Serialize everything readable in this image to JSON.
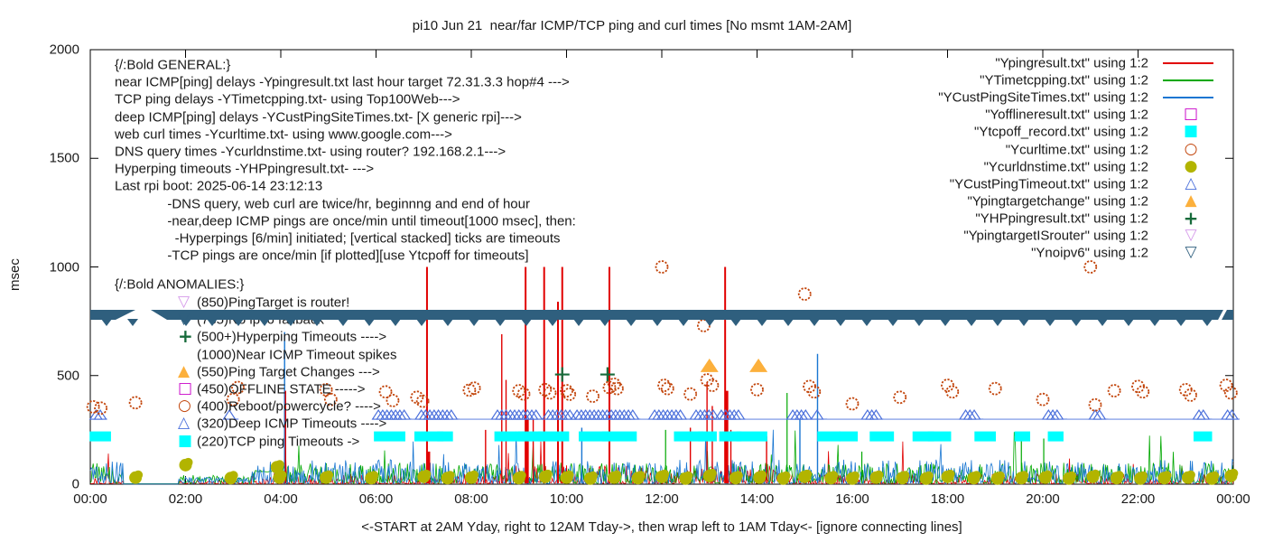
{
  "title": "pi10 Jun 21  near/far ICMP/TCP ping and curl times [No msmt 1AM-2AM]",
  "y_axis": {
    "label": "msec",
    "tick_values": [
      0,
      500,
      1000,
      1500,
      2000
    ],
    "tick_labels": [
      "0",
      "500",
      "1000",
      "1500",
      "2000"
    ]
  },
  "x_axis": {
    "label": "<-START at 2AM Yday, right to 12AM Tday->, then wrap left to 1AM Tday<- [ignore connecting lines]",
    "tick_hours": [
      0,
      2,
      4,
      6,
      8,
      10,
      12,
      14,
      16,
      18,
      20,
      22,
      24
    ],
    "tick_labels": [
      "00:00",
      "02:00",
      "04:00",
      "06:00",
      "08:00",
      "10:00",
      "12:00",
      "14:00",
      "16:00",
      "18:00",
      "20:00",
      "22:00",
      "00:00"
    ]
  },
  "legend": {
    "items": [
      {
        "label": "\"Ypingresult.txt\" using 1:2",
        "marker": "line",
        "color": "#e10000"
      },
      {
        "label": "\"YTimetcpping.txt\" using 1:2",
        "marker": "line",
        "color": "#00a800"
      },
      {
        "label": "\"YCustPingSiteTimes.txt\" using 1:2",
        "marker": "line",
        "color": "#1976d2"
      },
      {
        "label": "\"Yofflineresult.txt\" using 1:2",
        "marker": "square-open",
        "color": "#c800c8"
      },
      {
        "label": "\"Ytcpoff_record.txt\" using 1:2",
        "marker": "square-filled",
        "color": "#00ffff"
      },
      {
        "label": "\"Ycurltime.txt\" using 1:2",
        "marker": "circle-open",
        "color": "#c2440a"
      },
      {
        "label": "\"Ycurldnstime.txt\" using 1:2",
        "marker": "circle-filled",
        "color": "#b2b400"
      },
      {
        "label": "\"YCustPingTimeout.txt\" using 1:2",
        "marker": "tri-up-open",
        "color": "#4a6fdb"
      },
      {
        "label": "\"Ypingtargetchange\" using 1:2",
        "marker": "tri-up-filled",
        "color": "#fcb03c"
      },
      {
        "label": "\"YHPpingresult.txt\" using 1:2",
        "marker": "plus",
        "color": "#176b3b"
      },
      {
        "label": "\"YpingtargetISrouter\" using 1:2",
        "marker": "tri-down-open",
        "color": "#d59aea"
      },
      {
        "label": "\"Ynoipv6\" using 1:2",
        "marker": "tri-down-open",
        "color": "#2f5f7e"
      }
    ]
  },
  "annotations": {
    "general": {
      "lines": [
        "{/:Bold GENERAL:}",
        "near ICMP[ping] delays -Ypingresult.txt last hour target 72.31.3.3 hop#4 --->",
        "TCP ping delays -YTimetcpping.txt- using Top100Web--->",
        "deep ICMP[ping] delays -YCustPingSiteTimes.txt- [X generic rpi]--->",
        "web curl times -Ycurltime.txt- using www.google.com--->",
        "DNS query times -Ycurldnstime.txt- using router? 192.168.2.1--->",
        "Hyperping timeouts -YHPpingresult.txt- --->",
        "Last rpi boot: 2025-06-14 23:12:13",
        "              -DNS query, web curl are twice/hr, beginnng and end of hour",
        "              -near,deep ICMP pings are once/min until timeout[1000 msec], then:",
        "                -Hyperpings [6/min] initiated; [vertical stacked] ticks are timeouts",
        "              -TCP pings are once/min [if plotted][use Ytcpoff for timeouts]"
      ]
    },
    "anomalies": {
      "header": "{/:Bold ANOMALIES:}",
      "items": [
        {
          "marker": "tri-down-open",
          "color": "#d59aea",
          "text": "(850)PingTarget is router!"
        },
        {
          "marker": "tri-down-open",
          "color": "#2f5f7e",
          "text": "(785)No ipv6 fallback",
          "occluded": true
        },
        {
          "marker": "plus",
          "color": "#176b3b",
          "text": "(500+)Hyperping Timeouts ---->"
        },
        {
          "marker": "none",
          "color": "#1a1a1a",
          "text": "(1000)Near ICMP Timeout spikes"
        },
        {
          "marker": "tri-up-filled",
          "color": "#fcb03c",
          "text": "(550)Ping Target Changes --->"
        },
        {
          "marker": "square-open",
          "color": "#c800c8",
          "text": "(450)OFFLINE STATE ----->"
        },
        {
          "marker": "circle-open",
          "color": "#c2440a",
          "text": "(400)Reboot/powercycle? ---->"
        },
        {
          "marker": "tri-up-open",
          "color": "#4a6fdb",
          "text": "(320)Deep ICMP Timeouts ---->"
        },
        {
          "marker": "square-filled",
          "color": "#00ffff",
          "text": "(220)TCP ping Timeouts ->"
        }
      ]
    }
  },
  "chart_data": {
    "type": "mixed",
    "title": "pi10 Jun 21  near/far ICMP/TCP ping and curl times [No msmt 1AM-2AM]",
    "xlabel": "<-START at 2AM Yday, right to 12AM Tday->, then wrap left to 1AM Tday<- [ignore connecting lines]",
    "ylabel": "msec",
    "ylim": [
      0,
      2000
    ],
    "x_hours_range": [
      0,
      24
    ],
    "grid": false,
    "legend_position": "top-right",
    "noipv6_band": {
      "description": "dense stacked triangle-down markers forming a solid horizontal band",
      "color": "#2f5f7e",
      "top_msec": 803,
      "bottom_msec": 755,
      "notch_hours": [
        0.95,
        1.62
      ],
      "tip_spacing_hours": 0.55
    },
    "near_icmp_timeout_spikes_red": [
      [
        7.07,
        1000
      ],
      [
        9.14,
        1000
      ],
      [
        9.53,
        1000
      ],
      [
        9.82,
        840
      ],
      [
        9.91,
        1000
      ],
      [
        10.9,
        1000
      ],
      [
        13.33,
        1000
      ]
    ],
    "red_thick_bases": [
      [
        7.07,
        150
      ],
      [
        9.14,
        300
      ],
      [
        13.33,
        430
      ]
    ],
    "red_medium_spikes": [
      [
        4.1,
        430
      ],
      [
        8.3,
        250
      ],
      [
        8.64,
        690
      ],
      [
        8.73,
        480
      ],
      [
        9.3,
        300
      ],
      [
        12.6,
        260
      ],
      [
        12.95,
        465
      ],
      [
        13.45,
        250
      ],
      [
        13.06,
        360
      ],
      [
        14.2,
        220
      ]
    ],
    "blue_spikes": [
      [
        4.08,
        700
      ],
      [
        10.32,
        260
      ],
      [
        14.9,
        300
      ],
      [
        15.27,
        600
      ]
    ],
    "green_spikes": [
      [
        12.08,
        250
      ],
      [
        14.63,
        420
      ],
      [
        16.2,
        150
      ],
      [
        19.55,
        200
      ],
      [
        20.02,
        210
      ]
    ],
    "hyperping_timeout_plus": [
      [
        9.91,
        505
      ],
      [
        10.86,
        505
      ]
    ],
    "ping_target_change_triangles": [
      [
        13.0,
        545
      ],
      [
        14.03,
        545
      ]
    ],
    "curl_time_circles": [
      [
        0.06,
        356
      ],
      [
        0.22,
        350
      ],
      [
        0.95,
        375
      ],
      [
        3.0,
        390
      ],
      [
        3.1,
        445
      ],
      [
        4.95,
        435
      ],
      [
        5.05,
        390
      ],
      [
        6.2,
        425
      ],
      [
        6.35,
        385
      ],
      [
        6.86,
        400
      ],
      [
        6.98,
        382
      ],
      [
        7.96,
        433
      ],
      [
        8.06,
        442
      ],
      [
        9.0,
        430
      ],
      [
        9.1,
        415
      ],
      [
        9.55,
        435
      ],
      [
        9.65,
        420
      ],
      [
        10.0,
        430
      ],
      [
        10.06,
        414
      ],
      [
        10.55,
        405
      ],
      [
        10.9,
        445
      ],
      [
        11.0,
        460
      ],
      [
        11.06,
        440
      ],
      [
        12.0,
        1000
      ],
      [
        12.05,
        455
      ],
      [
        12.12,
        440
      ],
      [
        12.6,
        415
      ],
      [
        12.88,
        730
      ],
      [
        12.95,
        480
      ],
      [
        13.06,
        455
      ],
      [
        14.0,
        435
      ],
      [
        15.0,
        875
      ],
      [
        15.1,
        450
      ],
      [
        15.2,
        425
      ],
      [
        16.0,
        370
      ],
      [
        17.0,
        400
      ],
      [
        18.0,
        455
      ],
      [
        18.1,
        425
      ],
      [
        19.0,
        440
      ],
      [
        20.0,
        390
      ],
      [
        21.0,
        1000
      ],
      [
        21.1,
        365
      ],
      [
        21.5,
        430
      ],
      [
        22.0,
        450
      ],
      [
        22.1,
        425
      ],
      [
        23.0,
        435
      ],
      [
        23.1,
        410
      ],
      [
        23.85,
        455
      ],
      [
        23.95,
        420
      ]
    ],
    "dns_time_circles": [
      [
        0.95,
        30
      ],
      [
        2.0,
        88
      ],
      [
        2.95,
        28
      ],
      [
        3.92,
        78
      ],
      [
        3.97,
        30
      ],
      [
        4.95,
        30
      ],
      [
        5.9,
        28
      ],
      [
        7.0,
        34
      ],
      [
        7.5,
        28
      ],
      [
        8.0,
        30
      ],
      [
        9.0,
        28
      ],
      [
        9.55,
        34
      ],
      [
        10.0,
        30
      ],
      [
        10.5,
        26
      ],
      [
        11.0,
        30
      ],
      [
        11.5,
        28
      ],
      [
        12.0,
        34
      ],
      [
        12.5,
        26
      ],
      [
        13.0,
        38
      ],
      [
        13.55,
        28
      ],
      [
        14.05,
        30
      ],
      [
        14.55,
        26
      ],
      [
        15.0,
        34
      ],
      [
        15.55,
        28
      ],
      [
        16.0,
        26
      ],
      [
        16.5,
        30
      ],
      [
        17.05,
        28
      ],
      [
        17.55,
        26
      ],
      [
        18.0,
        34
      ],
      [
        18.55,
        28
      ],
      [
        19.05,
        26
      ],
      [
        19.55,
        28
      ],
      [
        20.05,
        30
      ],
      [
        20.55,
        26
      ],
      [
        21.05,
        34
      ],
      [
        21.55,
        28
      ],
      [
        22.05,
        26
      ],
      [
        22.55,
        28
      ],
      [
        23.05,
        30
      ],
      [
        23.55,
        26
      ],
      [
        23.95,
        38
      ]
    ],
    "deep_icmp_timeout_triangle_segments_at_320": [
      [
        0.12,
        0.22
      ],
      [
        2.92,
        2.98
      ],
      [
        6.05,
        6.62
      ],
      [
        6.95,
        7.62
      ],
      [
        8.55,
        9.42
      ],
      [
        9.62,
        10.12
      ],
      [
        10.22,
        11.42
      ],
      [
        11.85,
        12.45
      ],
      [
        12.72,
        13.12
      ],
      [
        13.25,
        13.62
      ],
      [
        14.75,
        15.05
      ],
      [
        15.26,
        15.34
      ],
      [
        16.32,
        16.52
      ],
      [
        18.38,
        18.62
      ],
      [
        20.12,
        20.38
      ],
      [
        21.1,
        21.24
      ],
      [
        23.28,
        23.42
      ],
      [
        23.88,
        24.0
      ]
    ],
    "tcp_timeout_square_segments_at_220": [
      [
        0.08,
        0.34
      ],
      [
        6.05,
        6.52
      ],
      [
        6.9,
        7.32
      ],
      [
        7.38,
        7.52
      ],
      [
        8.58,
        9.02
      ],
      [
        9.08,
        9.38
      ],
      [
        9.5,
        9.96
      ],
      [
        10.35,
        10.78
      ],
      [
        10.84,
        11.38
      ],
      [
        12.35,
        12.78
      ],
      [
        12.86,
        13.06
      ],
      [
        13.3,
        13.58
      ],
      [
        13.66,
        14.12
      ],
      [
        15.36,
        15.66
      ],
      [
        15.82,
        16.02
      ],
      [
        16.46,
        16.78
      ],
      [
        17.36,
        17.62
      ],
      [
        17.68,
        17.98
      ],
      [
        18.66,
        18.92
      ],
      [
        19.5,
        19.64
      ],
      [
        20.2,
        20.34
      ],
      [
        23.26,
        23.46
      ]
    ],
    "noise": {
      "seed": 20250621,
      "step_hours": 0.02,
      "quiet_hours": [
        0.7,
        1.85
      ],
      "reduced_hours": [
        1.85,
        3.4
      ],
      "flat_green_segment": {
        "hours": [
          3.45,
          4.05
        ],
        "msec": 60
      },
      "red_cluster_hours": [
        8.5,
        14.5
      ],
      "green_base_max": 95,
      "blue_base_max": 110,
      "red_base_max": 45
    },
    "colors": {
      "red_line": "#e10000",
      "green_line": "#00a800",
      "blue_line": "#1976d2",
      "magenta": "#c800c8",
      "cyan": "#00ffff",
      "curl_circle": "#c2440a",
      "dns_circle": "#b2b400",
      "deep_triangle": "#4a6fdb",
      "target_change": "#fcb03c",
      "hyperping_plus": "#176b3b",
      "isrouter_violet": "#d59aea",
      "noipv6_slate": "#2f5f7e"
    }
  }
}
